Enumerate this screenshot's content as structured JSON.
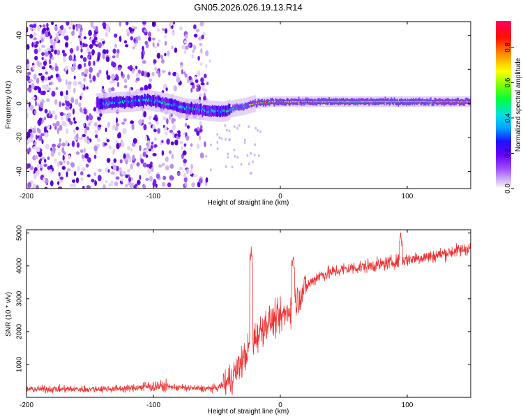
{
  "title": "GN05.2026.026.19.13.R14",
  "chart_data": [
    {
      "type": "heatmap",
      "xlabel": "Height of straight line (km)",
      "ylabel": "Frequency (Hz)",
      "xlim": [
        -200,
        150
      ],
      "ylim": [
        -50,
        48
      ],
      "xticks": [
        -200,
        -100,
        0,
        100
      ],
      "yticks": [
        -40,
        -20,
        0,
        20,
        40
      ],
      "colorbar": {
        "label": "Normalized spectral amplitude",
        "range": [
          0,
          0.95
        ],
        "ticks": [
          0.0,
          0.2,
          0.4,
          0.6,
          0.8
        ],
        "colors": [
          "#ffffff",
          "#b07be6",
          "#7a00ff",
          "#3000ff",
          "#00c8ff",
          "#00ff00",
          "#ffff00",
          "#ff8000",
          "#ff0000",
          "#ff0060"
        ]
      },
      "ridge_frequency": [
        {
          "x": -140,
          "y": 0
        },
        {
          "x": -120,
          "y": 1
        },
        {
          "x": -105,
          "y": 2
        },
        {
          "x": -90,
          "y": 0
        },
        {
          "x": -75,
          "y": -3
        },
        {
          "x": -60,
          "y": -4
        },
        {
          "x": -45,
          "y": -5
        },
        {
          "x": -38,
          "y": -3
        },
        {
          "x": -30,
          "y": -2
        },
        {
          "x": -20,
          "y": 0
        },
        {
          "x": -5,
          "y": 1
        },
        {
          "x": 10,
          "y": 1
        },
        {
          "x": 40,
          "y": 1
        },
        {
          "x": 100,
          "y": 1
        },
        {
          "x": 150,
          "y": 1
        }
      ],
      "noise_region_x": [
        -200,
        -55
      ]
    },
    {
      "type": "line",
      "xlabel": "Height of straight line (km)",
      "ylabel": "SNR (10 * v/v)",
      "xlim": [
        -200,
        150
      ],
      "ylim": [
        0,
        5100
      ],
      "xticks": [
        -200,
        -100,
        0,
        100
      ],
      "yticks": [
        1000,
        2000,
        3000,
        4000,
        5000
      ],
      "color": "#ee3333",
      "trend": [
        {
          "x": -200,
          "y": 250
        },
        {
          "x": -150,
          "y": 250
        },
        {
          "x": -120,
          "y": 270
        },
        {
          "x": -100,
          "y": 350
        },
        {
          "x": -80,
          "y": 300
        },
        {
          "x": -60,
          "y": 260
        },
        {
          "x": -50,
          "y": 280
        },
        {
          "x": -40,
          "y": 500
        },
        {
          "x": -30,
          "y": 1100
        },
        {
          "x": -20,
          "y": 1800
        },
        {
          "x": -10,
          "y": 2300
        },
        {
          "x": 0,
          "y": 2400
        },
        {
          "x": 10,
          "y": 2800
        },
        {
          "x": 20,
          "y": 3350
        },
        {
          "x": 30,
          "y": 3700
        },
        {
          "x": 50,
          "y": 3900
        },
        {
          "x": 80,
          "y": 4050
        },
        {
          "x": 100,
          "y": 4200
        },
        {
          "x": 120,
          "y": 4300
        },
        {
          "x": 150,
          "y": 4550
        }
      ],
      "spikes": [
        {
          "x": -23,
          "y": 4450
        },
        {
          "x": 10,
          "y": 4300
        },
        {
          "x": 95,
          "y": 5000
        }
      ]
    }
  ]
}
